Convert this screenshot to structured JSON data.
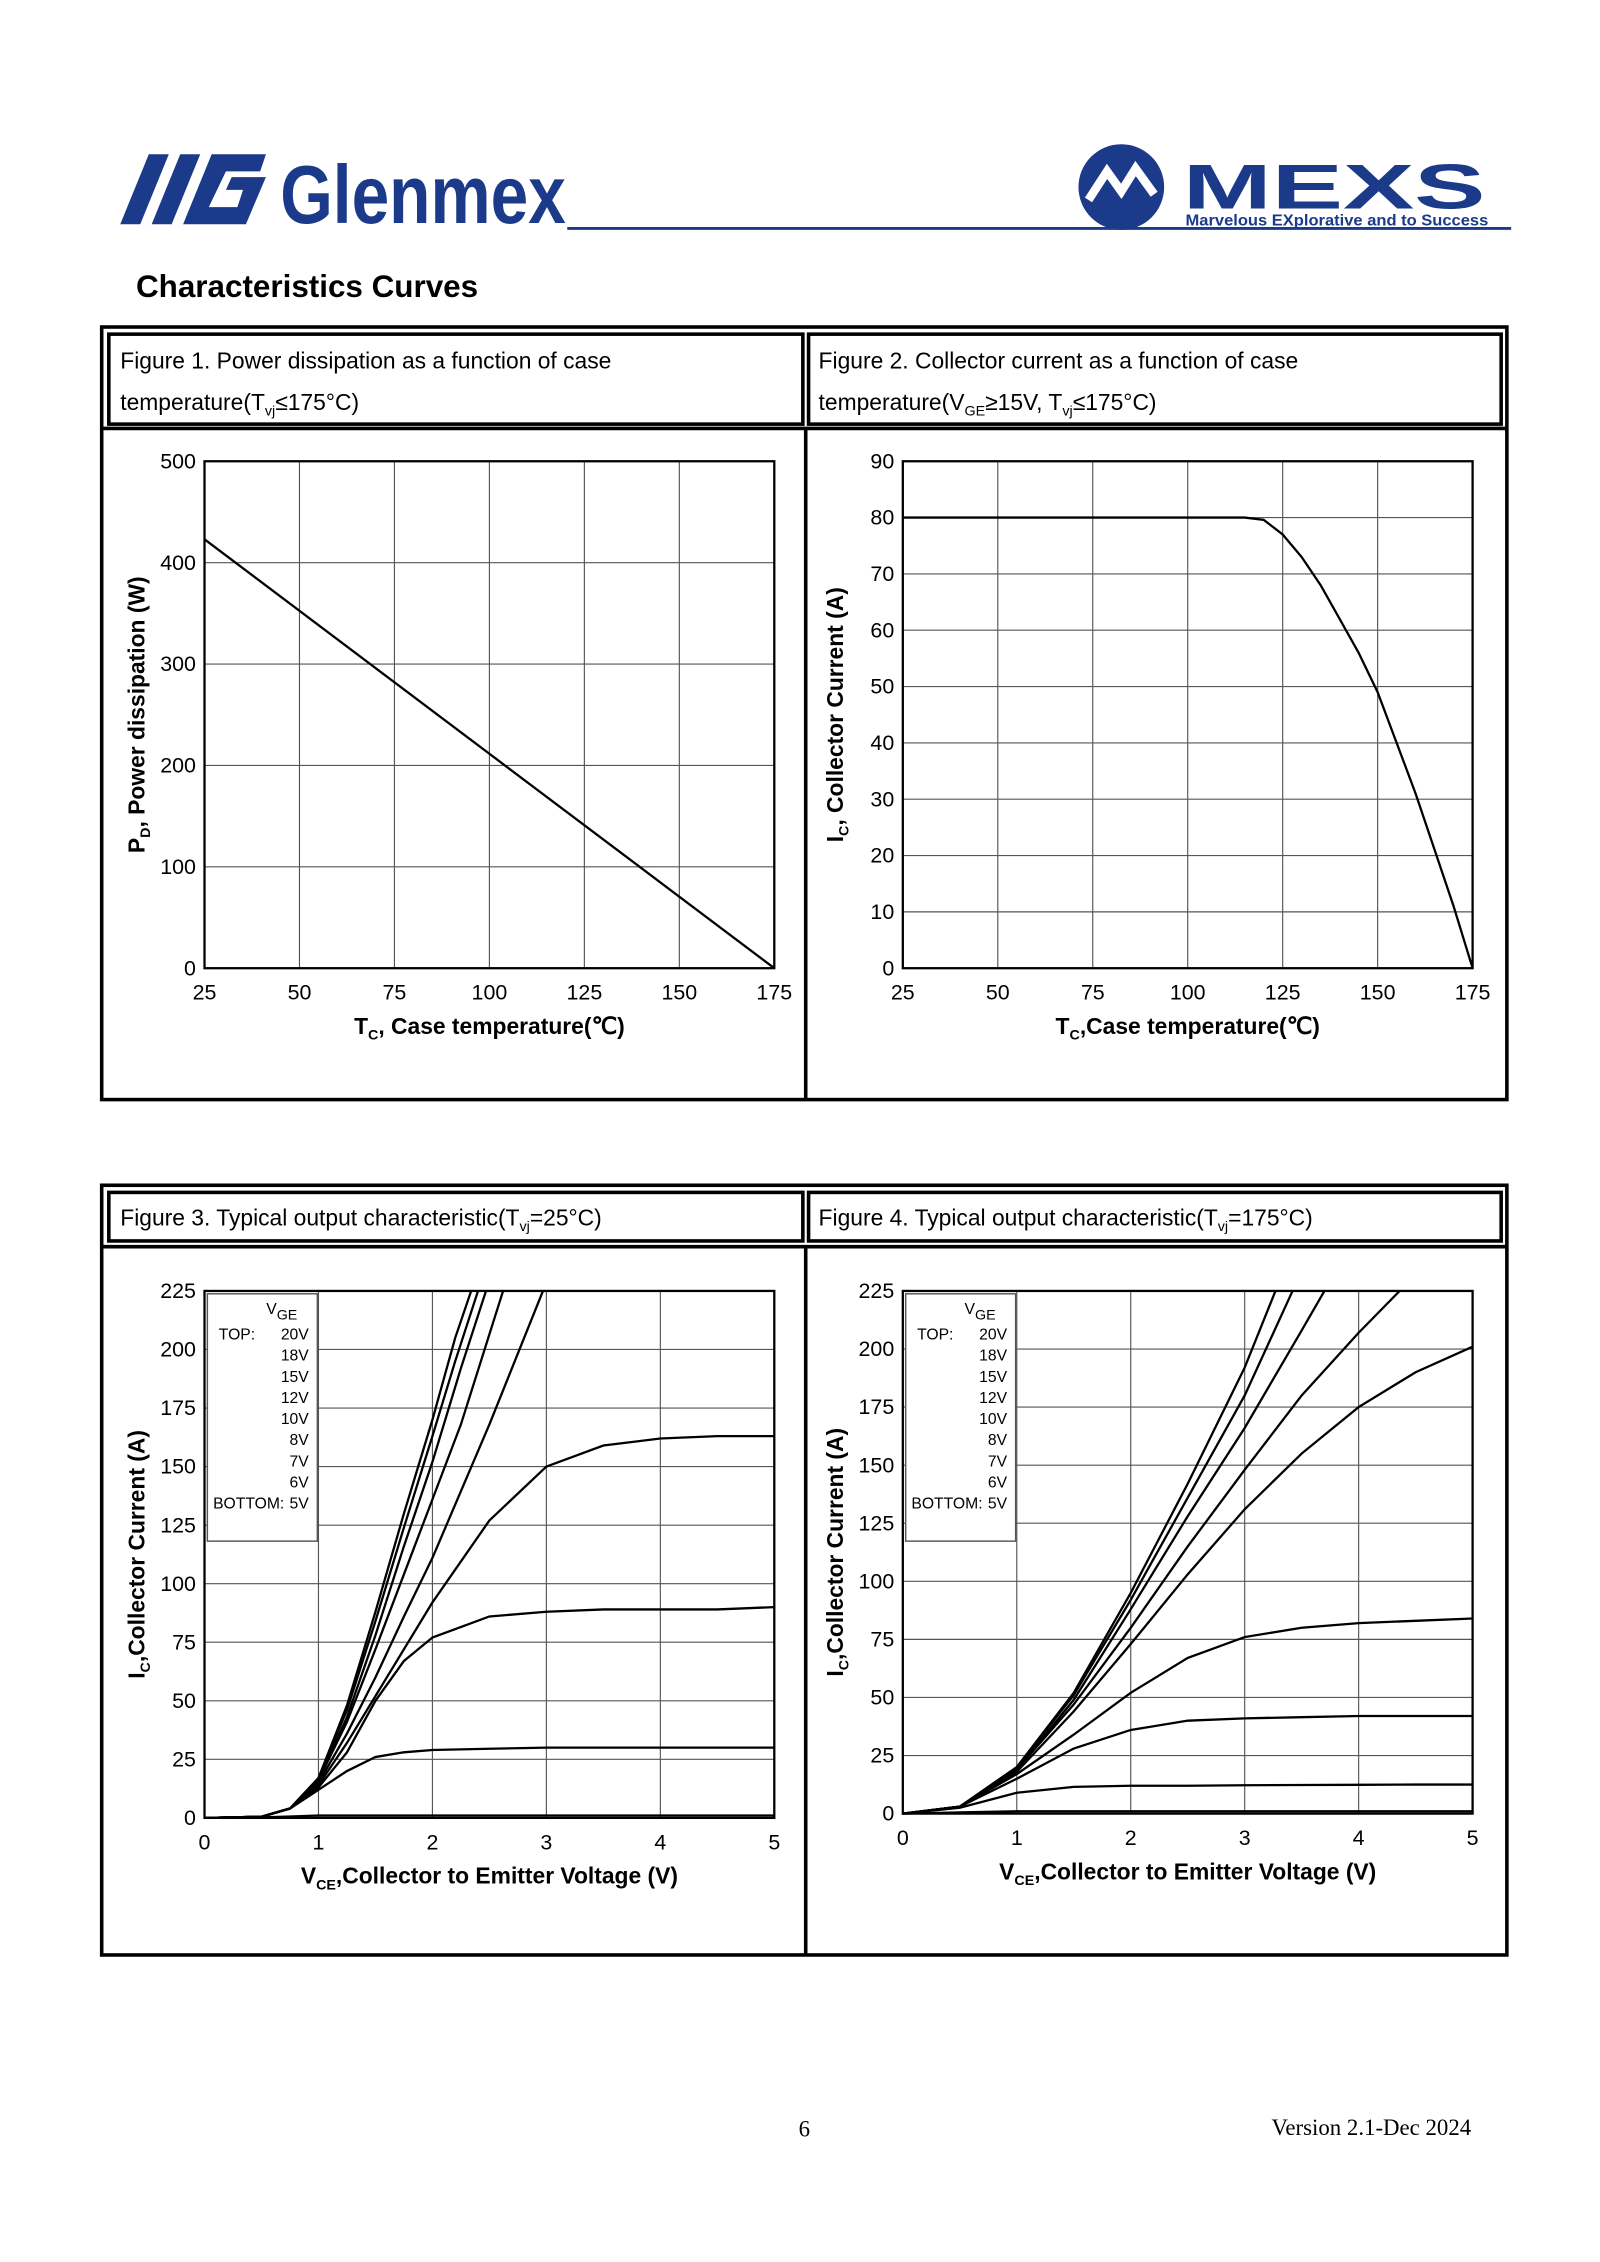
{
  "header": {
    "brand": "Glenmex",
    "partner": "MEXS",
    "tagline": "Marvelous EXplorative and to Success"
  },
  "section_title": "Characteristics Curves",
  "figures": [
    {
      "caption": [
        "Figure 1. Power dissipation as a function of case",
        "temperature(T",
        "vj",
        "≤175°C)"
      ],
      "chart_data": {
        "type": "line",
        "color": "#000000",
        "grid": true,
        "xlabel": [
          "T",
          "C",
          ", Case temperature(℃)"
        ],
        "ylabel": [
          "P",
          "D",
          ", Power dissipation (W)"
        ],
        "xlim": [
          25,
          175
        ],
        "xticks": [
          25,
          50,
          75,
          100,
          125,
          150,
          175
        ],
        "ylim": [
          0,
          500
        ],
        "yticks": [
          0,
          100,
          200,
          300,
          400,
          500
        ],
        "x": [
          25,
          175
        ],
        "values": [
          423,
          0
        ]
      }
    },
    {
      "caption": [
        "Figure 2. Collector current as a function of case",
        "temperature(V",
        "GE",
        "≥15V, T",
        "vj",
        "≤175°C)"
      ],
      "chart_data": {
        "type": "line",
        "color": "#000000",
        "grid": true,
        "xlabel": [
          "T",
          "C",
          ",Case temperature(℃)"
        ],
        "ylabel": [
          "I",
          "C",
          ", Collector Current (A)"
        ],
        "xlim": [
          25,
          175
        ],
        "xticks": [
          25,
          50,
          75,
          100,
          125,
          150,
          175
        ],
        "ylim": [
          0,
          90
        ],
        "yticks": [
          0,
          10,
          20,
          30,
          40,
          50,
          60,
          70,
          80,
          90
        ],
        "x": [
          25,
          50,
          75,
          100,
          115,
          120,
          125,
          130,
          135,
          140,
          145,
          150,
          155,
          160,
          165,
          170,
          175
        ],
        "values": [
          80,
          80,
          80,
          80,
          80,
          79.6,
          77,
          73,
          68,
          62,
          56,
          49,
          40,
          31,
          21,
          11,
          0
        ]
      }
    },
    {
      "caption": [
        "Figure 3. Typical output characteristic(T",
        "vj",
        "=25°C)"
      ],
      "chart_data": {
        "type": "line",
        "color": "#000000",
        "grid": true,
        "xlabel": [
          "V",
          "CE",
          ",Collector to Emitter Voltage (V)"
        ],
        "ylabel": [
          "I",
          "C",
          ",Collector Current (A)"
        ],
        "xlim": [
          0,
          5
        ],
        "xticks": [
          0,
          1,
          2,
          3,
          4,
          5
        ],
        "ylim": [
          0,
          225
        ],
        "yticks": [
          0,
          25,
          50,
          75,
          100,
          125,
          150,
          175,
          200,
          225
        ],
        "legend": {
          "position": "upper left",
          "title": [
            "V",
            "GE"
          ],
          "top": "TOP:",
          "bottom": "BOTTOM:"
        },
        "series": [
          {
            "name": "20V",
            "x": [
              0,
              0.5,
              0.75,
              1,
              1.25,
              1.5,
              1.75,
              2,
              2.2,
              2.34
            ],
            "values": [
              0,
              0.5,
              4,
              17,
              48,
              88,
              130,
              170,
              205,
              225
            ]
          },
          {
            "name": "18V",
            "x": [
              0,
              0.5,
              0.75,
              1,
              1.25,
              1.5,
              1.75,
              2,
              2.2,
              2.4
            ],
            "values": [
              0,
              0.5,
              4,
              17,
              46,
              84,
              124,
              163,
              195,
              225
            ]
          },
          {
            "name": "15V",
            "x": [
              0,
              0.5,
              0.75,
              1,
              1.25,
              1.5,
              1.75,
              2,
              2.25,
              2.47
            ],
            "values": [
              0,
              0.5,
              4,
              16,
              43,
              78,
              116,
              152,
              192,
              225
            ]
          },
          {
            "name": "12V",
            "x": [
              0,
              0.5,
              0.75,
              1,
              1.25,
              1.5,
              1.75,
              2,
              2.25,
              2.62
            ],
            "values": [
              0,
              0.5,
              4,
              16,
              41,
              72,
              104,
              136,
              168,
              225
            ]
          },
          {
            "name": "10V",
            "x": [
              0,
              0.5,
              0.75,
              1,
              1.25,
              1.5,
              1.75,
              2,
              2.5,
              2.97
            ],
            "values": [
              0,
              0.5,
              4,
              15,
              36,
              60,
              86,
              111,
              168,
              225
            ]
          },
          {
            "name": "8V",
            "x": [
              0,
              0.5,
              0.75,
              1,
              1.25,
              1.5,
              1.75,
              2,
              2.5,
              3,
              3.5,
              4,
              4.5,
              5
            ],
            "values": [
              0,
              0.5,
              4,
              14,
              32,
              52,
              72,
              92,
              127,
              150,
              159,
              162,
              163,
              163
            ]
          },
          {
            "name": "7V",
            "x": [
              0,
              0.5,
              0.75,
              1,
              1.25,
              1.5,
              1.75,
              2,
              2.5,
              3,
              3.5,
              4,
              4.5,
              5
            ],
            "values": [
              0,
              0.5,
              4,
              13,
              28,
              50,
              67,
              77,
              86,
              88,
              89,
              89,
              89,
              90
            ]
          },
          {
            "name": "6V",
            "x": [
              0,
              0.5,
              0.75,
              1,
              1.25,
              1.5,
              1.75,
              2,
              2.5,
              3,
              3.5,
              4,
              4.5,
              5
            ],
            "values": [
              0,
              0.5,
              4,
              12,
              20,
              26,
              28,
              29,
              29.5,
              30,
              30,
              30,
              30,
              30
            ]
          },
          {
            "name": "5V",
            "x": [
              0,
              0.5,
              0.75,
              1,
              1.5,
              2,
              3,
              4,
              5
            ],
            "values": [
              0,
              0.2,
              0.6,
              1,
              1,
              1,
              1,
              1,
              1
            ]
          }
        ]
      }
    },
    {
      "caption": [
        "Figure 4. Typical output characteristic(T",
        "vj",
        "=175°C)"
      ],
      "chart_data": {
        "type": "line",
        "color": "#000000",
        "grid": true,
        "xlabel": [
          "V",
          "CE",
          ",Collector to Emitter Voltage (V)"
        ],
        "ylabel": [
          "I",
          "C",
          ",Collector Current (A)"
        ],
        "xlim": [
          0,
          5
        ],
        "xticks": [
          0,
          1,
          2,
          3,
          4,
          5
        ],
        "ylim": [
          0,
          225
        ],
        "yticks": [
          0,
          25,
          50,
          75,
          100,
          125,
          150,
          175,
          200,
          225
        ],
        "legend": {
          "position": "upper left",
          "title": [
            "V",
            "GE"
          ],
          "top": "TOP:",
          "bottom": "BOTTOM:"
        },
        "series": [
          {
            "name": "20V",
            "x": [
              0,
              0.5,
              1,
              1.5,
              2,
              2.5,
              3,
              3.27
            ],
            "values": [
              0,
              3,
              20,
              52,
              95,
              142,
              192,
              225
            ]
          },
          {
            "name": "18V",
            "x": [
              0,
              0.5,
              1,
              1.5,
              2,
              2.5,
              3,
              3.42
            ],
            "values": [
              0,
              3,
              20,
              51,
              92,
              136,
              180,
              225
            ]
          },
          {
            "name": "15V",
            "x": [
              0,
              0.5,
              1,
              1.5,
              2,
              2.5,
              3,
              3.5,
              3.7
            ],
            "values": [
              0,
              3,
              19,
              49,
              88,
              128,
              166,
              208,
              225
            ]
          },
          {
            "name": "12V",
            "x": [
              0,
              0.5,
              1,
              1.5,
              2,
              2.5,
              3,
              3.5,
              4,
              4.36
            ],
            "values": [
              0,
              3,
              19,
              47,
              80,
              115,
              148,
              180,
              207,
              225
            ]
          },
          {
            "name": "10V",
            "x": [
              0,
              0.5,
              1,
              1.5,
              2,
              2.5,
              3,
              3.5,
              4,
              4.5,
              5
            ],
            "values": [
              0,
              3,
              18,
              44,
              73,
              103,
              131,
              155,
              175,
              190,
              201
            ]
          },
          {
            "name": "8V",
            "x": [
              0,
              0.5,
              1,
              1.5,
              2,
              2.5,
              3,
              3.5,
              4,
              4.5,
              5
            ],
            "values": [
              0,
              3,
              17,
              34,
              52,
              67,
              76,
              80,
              82,
              83,
              84
            ]
          },
          {
            "name": "7V",
            "x": [
              0,
              0.5,
              1,
              1.5,
              2,
              2.5,
              3,
              3.5,
              4,
              4.5,
              5
            ],
            "values": [
              0,
              3,
              15,
              28,
              36,
              40,
              41,
              41.5,
              42,
              42,
              42
            ]
          },
          {
            "name": "6V",
            "x": [
              0,
              0.5,
              1,
              1.5,
              2,
              2.5,
              3,
              3.5,
              4,
              4.5,
              5
            ],
            "values": [
              0,
              2.5,
              9,
              11.5,
              12,
              12,
              12.2,
              12.3,
              12.4,
              12.5,
              12.5
            ]
          },
          {
            "name": "5V",
            "x": [
              0,
              0.5,
              1,
              2,
              3,
              4,
              5
            ],
            "values": [
              0,
              0.5,
              1,
              1,
              1,
              1,
              1
            ]
          }
        ]
      }
    }
  ],
  "footer": {
    "page": "6",
    "version": "Version 2.1-Dec 2024"
  }
}
